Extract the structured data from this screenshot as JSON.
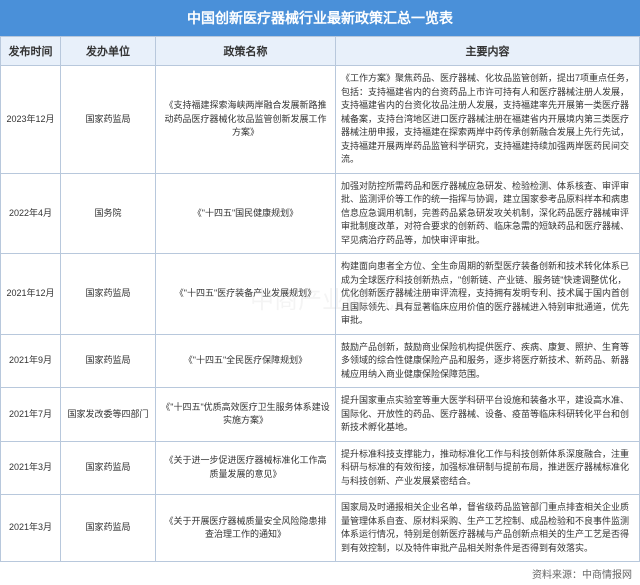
{
  "title": "中国创新医疗器械行业最新政策汇总一览表",
  "columns": [
    "发布时间",
    "发办单位",
    "政策名称",
    "主要内容"
  ],
  "rows": [
    {
      "date": "2023年12月",
      "org": "国家药监局",
      "policy": "《支持福建探索海峡两岸融合发展新路推动药品医疗器械化妆品监管创新发展工作方案》",
      "content": "《工作方案》聚焦药品、医疗器械、化妆品监管创新，提出7项重点任务，包括：支持福建省内的台资药品上市许可持有人和医疗器械注册人发展，支持福建省内的台资化妆品注册人发展，支持福建率先开展第一类医疗器械备案，支持台湾地区进口医疗器械注册在福建省内开展境内第三类医疗器械注册申报，支持福建在探索两岸中药传承创新融合发展上先行先试，支持福建开展两岸药品监管科学研究，支持福建持续加强两岸医药民间交流。"
    },
    {
      "date": "2022年4月",
      "org": "国务院",
      "policy": "《\"十四五\"国民健康规划》",
      "content": "加强对防控所需药品和医疗器械应急研发、检验检测、体系核查、审评审批、监测评价等工作的统一指挥与协调，建立国家参考品原料样本和病患信息应急调用机制，完善药品紧急研发攻关机制，深化药品医疗器械审评审批制度改革，对符合要求的创新药、临床急需的短缺药品和医疗器械、罕见病治疗药品等，加快审评审批。"
    },
    {
      "date": "2021年12月",
      "org": "国家药监局",
      "policy": "《\"十四五\"医疗装备产业发展规划》",
      "content": "构建面向患者全方位、全生命周期的新型医疗装备创新和技术转化体系已成为全球医疗科技创新热点，\"创新链、产业链、服务链\"快速调整优化，优化创新医疗器械注册审评流程，支持拥有发明专利、技术属于国内首创且国际领先、具有显著临床应用价值的医疗器械进入特别审批通道，优先审批。"
    },
    {
      "date": "2021年9月",
      "org": "国家药监局",
      "policy": "《\"十四五\"全民医疗保障规划》",
      "content": "鼓励产品创新，鼓励商业保险机构提供医疗、疾病、康复、照护、生育等多领域的综合性健康保险产品和服务，逐步将医疗新技术、新药品、新器械应用纳入商业健康保险保障范围。"
    },
    {
      "date": "2021年7月",
      "org": "国家发改委等四部门",
      "policy": "《\"十四五\"优质高效医疗卫生服务体系建设实施方案》",
      "content": "提升国家重点实验室等重大医学科研平台设施和装备水平，建设高水准、国际化、开放性的药品、医疗器械、设备、疫苗等临床科研转化平台和创新技术孵化基地。"
    },
    {
      "date": "2021年3月",
      "org": "国家药监局",
      "policy": "《关于进一步促进医疗器械标准化工作高质量发展的意见》",
      "content": "提升标准科技支撑能力，推动标准化工作与科技创新体系深度融合，注重科研与标准的有效衔接，加强标准研制与提前布局，推进医疗器械标准化与科技创新、产业发展紧密结合。"
    },
    {
      "date": "2021年3月",
      "org": "国家药监局",
      "policy": "《关于开展医疗器械质量安全风险隐患排查治理工作的通知》",
      "content": "国家局及时通报相关企业名单，督省级药品监管部门重点排查相关企业质量管理体系自查、原材料采购、生产工艺控制、成品检验和不良事件监测体系运行情况，特别是创新医疗器械与产品创新点相关的生产工艺是否得到有效控制，以及特件审批产品相关附条件是否得到有效落实。"
    }
  ],
  "source": "资料来源：中商情报网",
  "watermark": "中商产业研究院"
}
